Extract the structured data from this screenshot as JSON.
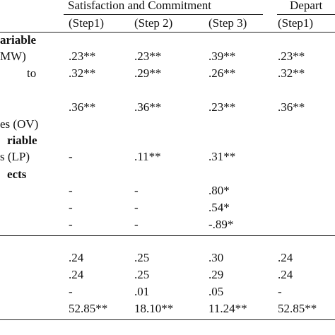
{
  "header": {
    "groups": [
      "Satisfaction and Commitment",
      "Depart"
    ],
    "steps": [
      "(Step1)",
      "(Step 2)",
      "(Step 3)",
      "(Step1)"
    ]
  },
  "table": {
    "rows": [
      {
        "label": "ariable"
      },
      {
        "label": "MW)",
        "cells": [
          ".23**",
          ".23**",
          ".39**",
          ".23**"
        ]
      },
      {
        "label": "to",
        "cells": [
          ".32**",
          ".29**",
          ".26**",
          ".32**"
        ]
      },
      {
        "cells": [
          ".36**",
          ".36**",
          ".23**",
          ".36**"
        ]
      },
      {
        "label": "es (OV)"
      },
      {
        "label": "riable"
      },
      {
        "label": "s (LP)",
        "cells": [
          "-",
          ".11**",
          ".31**"
        ]
      },
      {
        "label": "ects"
      },
      {
        "cells": [
          "-",
          "-",
          ".80*"
        ]
      },
      {
        "cells": [
          "-",
          "-",
          ".54*"
        ]
      },
      {
        "cells": [
          "-",
          "-",
          "-.89*"
        ]
      },
      {
        "cells": [
          ".24",
          ".25",
          ".30",
          ".24"
        ]
      },
      {
        "cells": [
          ".24",
          ".25",
          ".29",
          ".24"
        ]
      },
      {
        "cells": [
          "-",
          ".01",
          ".05",
          "-"
        ]
      },
      {
        "cells": [
          "52.85**",
          "18.10**",
          "11.24**",
          "52.85**"
        ]
      }
    ]
  }
}
